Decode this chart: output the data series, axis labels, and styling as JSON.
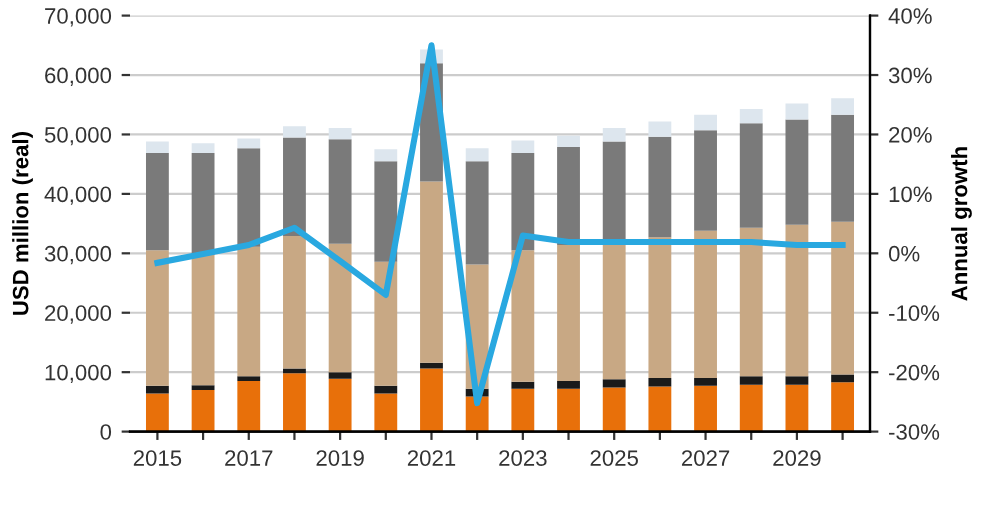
{
  "chart_data": {
    "type": "bar",
    "stacked": true,
    "ylabel": "USD million (real)",
    "y2label": "Annual growth",
    "categories": [
      "2015",
      null,
      "2017",
      null,
      "2019",
      null,
      "2021",
      null,
      "2023",
      null,
      "2025",
      null,
      "2027",
      null,
      "2029",
      null
    ],
    "series": [
      {
        "color": "#e8700a",
        "values": [
          6400,
          7000,
          8500,
          9800,
          8900,
          6400,
          10600,
          5900,
          7200,
          7200,
          7400,
          7600,
          7700,
          7900,
          7900,
          8300
        ]
      },
      {
        "color": "#1a1a1a",
        "values": [
          1300,
          800,
          800,
          800,
          1100,
          1300,
          1000,
          1300,
          1200,
          1300,
          1400,
          1400,
          1300,
          1400,
          1400,
          1300
        ]
      },
      {
        "color": "#c8a884",
        "values": [
          22800,
          21900,
          21800,
          22300,
          21600,
          20900,
          30500,
          20900,
          22100,
          22900,
          22600,
          23700,
          24800,
          25000,
          25500,
          25700
        ]
      },
      {
        "color": "#7a7a7a",
        "values": [
          16400,
          17200,
          16600,
          16600,
          17600,
          16900,
          19900,
          17400,
          16400,
          16500,
          17400,
          16900,
          16900,
          17600,
          17700,
          18000
        ]
      },
      {
        "color": "#dde6ee",
        "values": [
          1900,
          1600,
          1600,
          1900,
          1900,
          2000,
          2300,
          2200,
          2100,
          1900,
          2300,
          2600,
          2600,
          2400,
          2700,
          2800
        ]
      },
      {
        "type": "line",
        "axis": "y2",
        "color": "#29a8e0",
        "values": [
          -1.6,
          -0.1,
          1.4,
          4.3,
          -1.3,
          -7.0,
          35.0,
          -25.2,
          3.0,
          1.9,
          1.9,
          1.9,
          1.9,
          1.9,
          1.4,
          1.4
        ]
      }
    ],
    "ylim": [
      0,
      70000
    ],
    "yticks": [
      {
        "value": 0,
        "label": "0"
      },
      {
        "value": 10000,
        "label": "10,000"
      },
      {
        "value": 20000,
        "label": "20,000"
      },
      {
        "value": 30000,
        "label": "30,000"
      },
      {
        "value": 40000,
        "label": "40,000"
      },
      {
        "value": 50000,
        "label": "50,000"
      },
      {
        "value": 60000,
        "label": "60,000"
      },
      {
        "value": 70000,
        "label": "70,000"
      }
    ],
    "y2lim": [
      -30,
      40
    ],
    "y2ticks": [
      {
        "value": -30,
        "label": "-30%"
      },
      {
        "value": -20,
        "label": "-20%"
      },
      {
        "value": -10,
        "label": "-10%"
      },
      {
        "value": 0,
        "label": "0%"
      },
      {
        "value": 10,
        "label": "10%"
      },
      {
        "value": 20,
        "label": "20%"
      },
      {
        "value": 30,
        "label": "30%"
      },
      {
        "value": 40,
        "label": "40%"
      }
    ],
    "grid": "y"
  }
}
